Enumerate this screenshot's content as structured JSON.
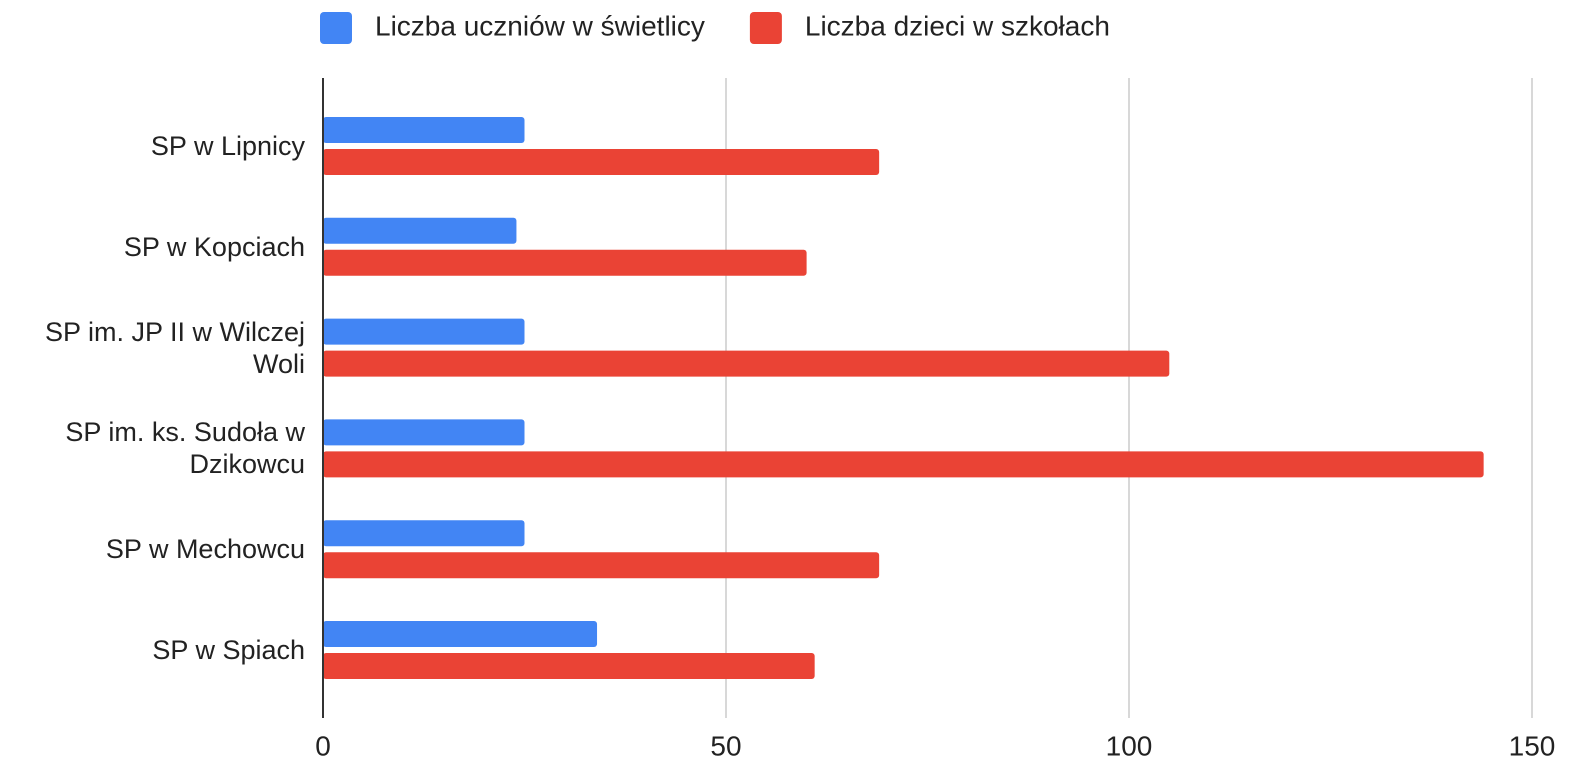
{
  "chart_data": {
    "type": "bar",
    "orientation": "horizontal",
    "categories": [
      "SP w Lipnicy",
      "SP w Kopciach",
      "SP im. JP II w Wilczej Woli",
      "SP im. ks. Sudoła w Dzikowcu",
      "SP w Mechowcu",
      "SP w Spiach"
    ],
    "series": [
      {
        "name": "Liczba uczniów w świetlicy",
        "color": "#4285f4",
        "values": [
          25,
          24,
          25,
          25,
          25,
          34
        ]
      },
      {
        "name": "Liczba dzieci w szkołach",
        "color": "#ea4335",
        "values": [
          69,
          60,
          105,
          144,
          69,
          61
        ]
      }
    ],
    "xlim": [
      0,
      150
    ],
    "xticks": [
      0,
      50,
      100,
      150
    ],
    "grid": true,
    "legend": "top"
  }
}
